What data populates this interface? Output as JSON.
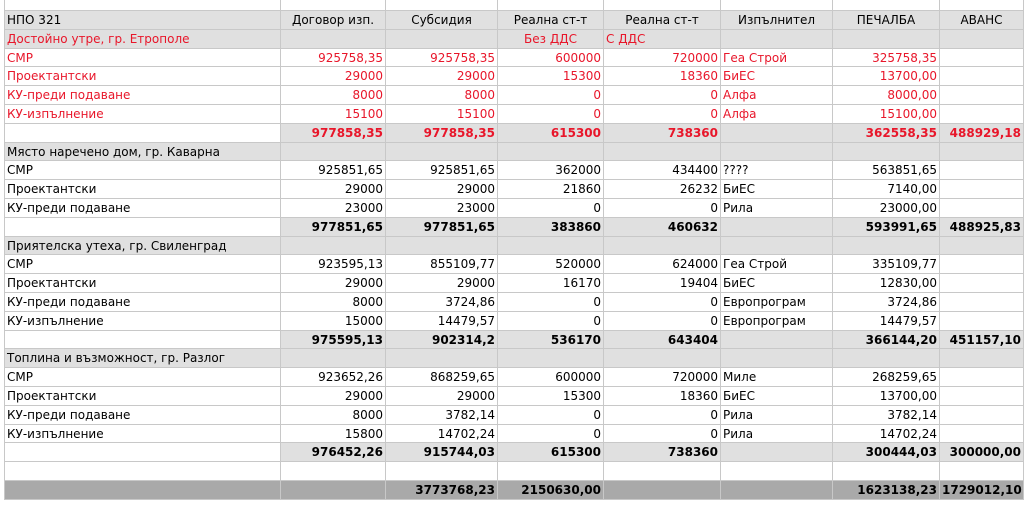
{
  "headers": [
    "НПО 321",
    "Договор изп.",
    "Субсидия",
    "Реална ст-т",
    "Реална ст-т",
    "Изпълнител",
    "ПЕЧАЛБА",
    "АВАНС"
  ],
  "projects": [
    {
      "title": "Достойно утре, гр. Етрополе",
      "note_d": "Без ДДС",
      "note_e": "С ДДС",
      "red": true,
      "rows": [
        {
          "name": "СМР",
          "contract": "925758,35",
          "subsidy": "925758,35",
          "real_ex": "600000",
          "real_in": "720000",
          "contractor": "Геа Строй",
          "profit": "325758,35",
          "advance": ""
        },
        {
          "name": "Проектантски",
          "contract": "29000",
          "subsidy": "29000",
          "real_ex": "15300",
          "real_in": "18360",
          "contractor": "БиЕС",
          "profit": "13700,00",
          "advance": ""
        },
        {
          "name": "КУ-преди подаване",
          "contract": "8000",
          "subsidy": "8000",
          "real_ex": "0",
          "real_in": "0",
          "contractor": "Алфа",
          "profit": "8000,00",
          "advance": ""
        },
        {
          "name": "КУ-изпълнение",
          "contract": "15100",
          "subsidy": "15100",
          "real_ex": "0",
          "real_in": "0",
          "contractor": "Алфа",
          "profit": "15100,00",
          "advance": ""
        }
      ],
      "total": {
        "contract": "977858,35",
        "subsidy": "977858,35",
        "real_ex": "615300",
        "real_in": "738360",
        "profit": "362558,35",
        "advance": "488929,18"
      }
    },
    {
      "title": "Място наречено дом, гр. Каварна",
      "note_d": "",
      "note_e": "",
      "red": false,
      "rows": [
        {
          "name": "СМР",
          "contract": "925851,65",
          "subsidy": "925851,65",
          "real_ex": "362000",
          "real_in": "434400",
          "contractor": "????",
          "profit": "563851,65",
          "advance": ""
        },
        {
          "name": "Проектантски",
          "contract": "29000",
          "subsidy": "29000",
          "real_ex": "21860",
          "real_in": "26232",
          "contractor": "БиЕС",
          "profit": "7140,00",
          "advance": ""
        },
        {
          "name": "КУ-преди подаване",
          "contract": "23000",
          "subsidy": "23000",
          "real_ex": "0",
          "real_in": "0",
          "contractor": "Рила",
          "profit": "23000,00",
          "advance": ""
        }
      ],
      "total": {
        "contract": "977851,65",
        "subsidy": "977851,65",
        "real_ex": "383860",
        "real_in": "460632",
        "profit": "593991,65",
        "advance": "488925,83"
      }
    },
    {
      "title": "Приятелска утеха, гр. Свиленград",
      "note_d": "",
      "note_e": "",
      "red": false,
      "rows": [
        {
          "name": "СМР",
          "contract": "923595,13",
          "subsidy": "855109,77",
          "real_ex": "520000",
          "real_in": "624000",
          "contractor": "Геа Строй",
          "profit": "335109,77",
          "advance": ""
        },
        {
          "name": "Проектантски",
          "contract": "29000",
          "subsidy": "29000",
          "real_ex": "16170",
          "real_in": "19404",
          "contractor": "БиЕС",
          "profit": "12830,00",
          "advance": ""
        },
        {
          "name": "КУ-преди подаване",
          "contract": "8000",
          "subsidy": "3724,86",
          "real_ex": "0",
          "real_in": "0",
          "contractor": "Европрограм",
          "profit": "3724,86",
          "advance": ""
        },
        {
          "name": "КУ-изпълнение",
          "contract": "15000",
          "subsidy": "14479,57",
          "real_ex": "0",
          "real_in": "0",
          "contractor": "Европрограм",
          "profit": "14479,57",
          "advance": ""
        }
      ],
      "total": {
        "contract": "975595,13",
        "subsidy": "902314,2",
        "real_ex": "536170",
        "real_in": "643404",
        "profit": "366144,20",
        "advance": "451157,10"
      }
    },
    {
      "title": "Топлина и възможност, гр. Разлог",
      "note_d": "",
      "note_e": "",
      "red": false,
      "rows": [
        {
          "name": "СМР",
          "contract": "923652,26",
          "subsidy": "868259,65",
          "real_ex": "600000",
          "real_in": "720000",
          "contractor": "Миле",
          "profit": "268259,65",
          "advance": ""
        },
        {
          "name": "Проектантски",
          "contract": "29000",
          "subsidy": "29000",
          "real_ex": "15300",
          "real_in": "18360",
          "contractor": "БиЕС",
          "profit": "13700,00",
          "advance": ""
        },
        {
          "name": "КУ-преди подаване",
          "contract": "8000",
          "subsidy": "3782,14",
          "real_ex": "0",
          "real_in": "0",
          "contractor": "Рила",
          "profit": "3782,14",
          "advance": ""
        },
        {
          "name": "КУ-изпълнение",
          "contract": "15800",
          "subsidy": "14702,24",
          "real_ex": "0",
          "real_in": "0",
          "contractor": "Рила",
          "profit": "14702,24",
          "advance": ""
        }
      ],
      "total": {
        "contract": "976452,26",
        "subsidy": "915744,03",
        "real_ex": "615300",
        "real_in": "738360",
        "profit": "300444,03",
        "advance": "300000,00"
      }
    }
  ],
  "grand_total": {
    "subsidy": "3773768,23",
    "real_ex": "2150630,00",
    "profit": "1623138,23",
    "advance": "1729012,10"
  },
  "colors": {
    "accent_red": "#e8162a",
    "header_bg": "#e0e0e0",
    "grand_total_bg": "#a9a9a9"
  }
}
